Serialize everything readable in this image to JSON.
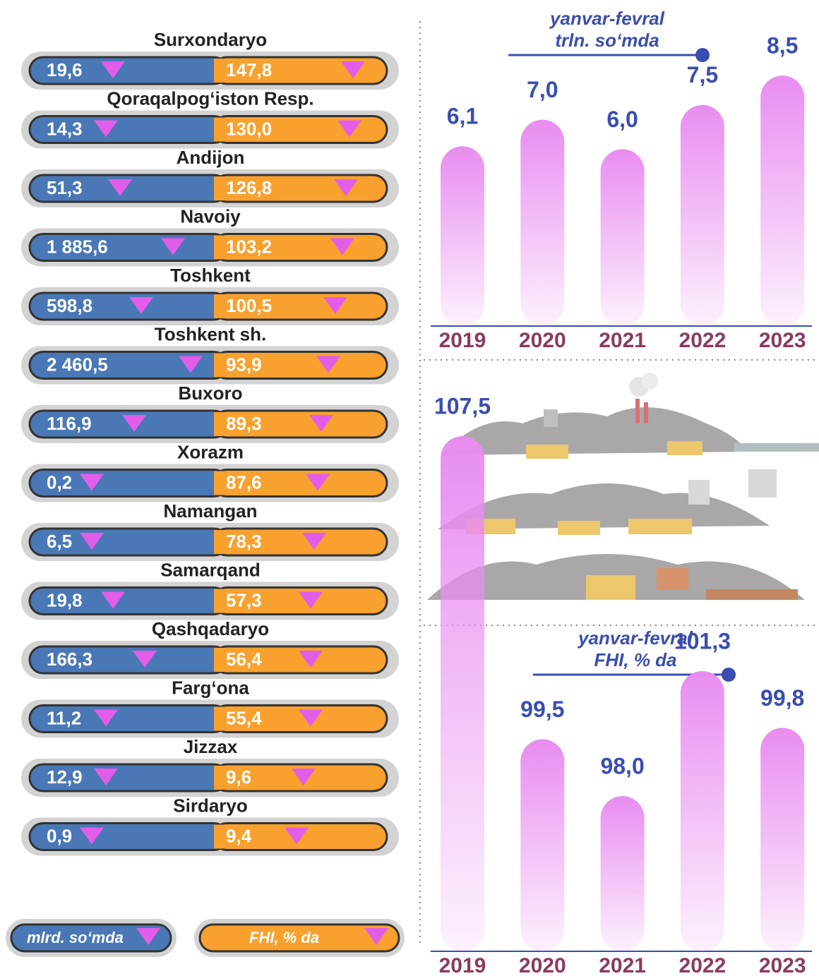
{
  "chart_data": [
    {
      "type": "pill",
      "categories": [
        "Surxondaryo",
        "Qoraqalpog‘iston Resp.",
        "Andijon",
        "Navoiy",
        "Toshkent",
        "Toshkent sh.",
        "Buxoro",
        "Xorazm",
        "Namangan",
        "Samarqand",
        "Qashqadaryo",
        "Farg‘ona",
        "Jizzax",
        "Sirdaryo"
      ],
      "series": [
        {
          "name": "mlrd. so‘mda",
          "color": "#4a78b6",
          "values": [
            19.6,
            14.3,
            51.3,
            1885.6,
            598.8,
            2460.5,
            116.9,
            0.2,
            6.5,
            19.8,
            166.3,
            11.2,
            12.9,
            0.9
          ],
          "value_labels": [
            "19,6",
            "14,3",
            "51,3",
            "1 885,6",
            "598,8",
            "2 460,5",
            "116,9",
            "0,2",
            "6,5",
            "19,8",
            "166,3",
            "11,2",
            "12,9",
            "0,9"
          ]
        },
        {
          "name": "FHI, % da",
          "color": "#f8a12e",
          "values": [
            147.8,
            130.0,
            126.8,
            103.2,
            100.5,
            93.9,
            89.3,
            87.6,
            78.3,
            57.3,
            56.4,
            55.4,
            9.6,
            9.4
          ],
          "value_labels": [
            "147,8",
            "130,0",
            "126,8",
            "103,2",
            "100,5",
            "93,9",
            "89,3",
            "87,6",
            "78,3",
            "57,3",
            "56,4",
            "55,4",
            "9,6",
            "9,4"
          ]
        }
      ]
    },
    {
      "type": "bar",
      "title": "yanvar-fevral",
      "subtitle": "trln. so‘mda",
      "categories": [
        "2019",
        "2020",
        "2021",
        "2022",
        "2023"
      ],
      "values": [
        6.1,
        7.0,
        6.0,
        7.5,
        8.5
      ],
      "value_labels": [
        "6,1",
        "7,0",
        "6,0",
        "7,5",
        "8,5"
      ],
      "color": "#e88df0"
    },
    {
      "type": "bar",
      "title": "yanvar-fevral",
      "subtitle": "FHI, % da",
      "categories": [
        "2019",
        "2020",
        "2021",
        "2022",
        "2023"
      ],
      "values": [
        107.5,
        99.5,
        98.0,
        101.3,
        99.8
      ],
      "value_labels": [
        "107,5",
        "99,5",
        "98,0",
        "101,3",
        "99,8"
      ],
      "color": "#e88df0"
    }
  ]
}
